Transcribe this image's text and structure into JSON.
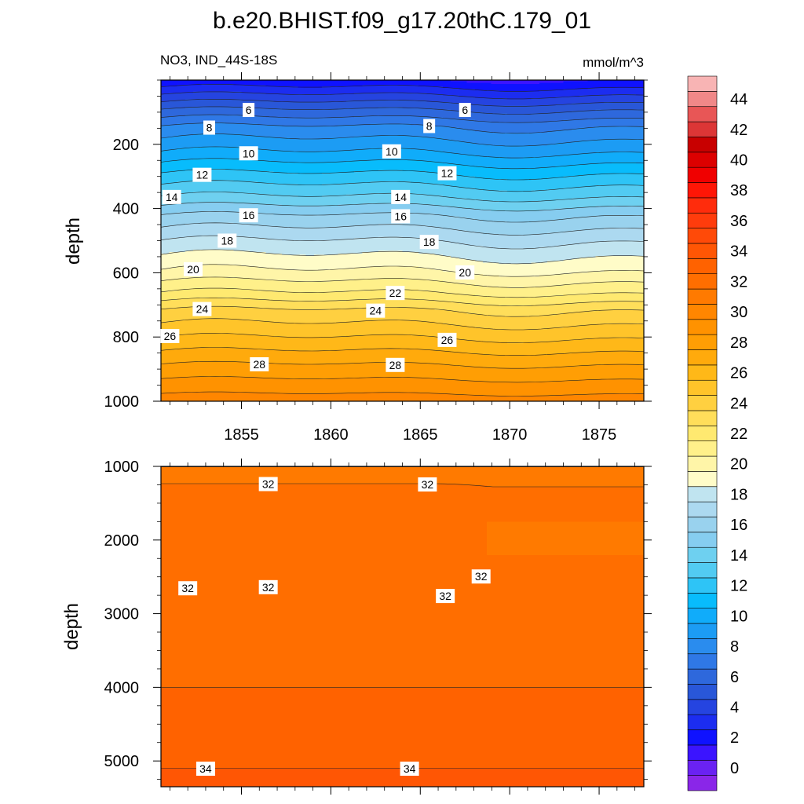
{
  "chart_data": {
    "type": "contour",
    "title": "b.e20.BHIST.f09_g17.20thC.179_01",
    "variable_label": "NO3, IND_44S-18S",
    "units_label": "mmol/m^3",
    "colorbar": {
      "levels": [
        0,
        2,
        4,
        6,
        8,
        10,
        12,
        14,
        16,
        18,
        20,
        22,
        24,
        26,
        28,
        30,
        32,
        34,
        36,
        38,
        40,
        42,
        44
      ],
      "tick_labels": [
        "0",
        "2",
        "4",
        "6",
        "8",
        "10",
        "12",
        "14",
        "16",
        "18",
        "20",
        "22",
        "24",
        "26",
        "28",
        "30",
        "32",
        "34",
        "36",
        "38",
        "40",
        "42",
        "44"
      ],
      "colors": [
        "#8a26e8",
        "#6a22f2",
        "#3b14ff",
        "#0f12ff",
        "#1c2df0",
        "#2544e0",
        "#2957d8",
        "#2e68dc",
        "#2f78e6",
        "#2a8cee",
        "#1c9cf4",
        "#10acfa",
        "#08bcfc",
        "#2ec4f6",
        "#52cbf2",
        "#6ed0f0",
        "#86cdf0",
        "#99d2ee",
        "#acd9f0",
        "#c0e4f0",
        "#fffcc8",
        "#fff5a8",
        "#fff08a",
        "#ffe970",
        "#ffde5a",
        "#ffd040",
        "#ffc42a",
        "#ffb818",
        "#ffaa0c",
        "#ff9e04",
        "#ff9200",
        "#ff8600",
        "#ff7a00",
        "#ff6e00",
        "#ff6200",
        "#ff5604",
        "#ff4a08",
        "#ff3c0c",
        "#ff2c0c",
        "#ff1606",
        "#f00000",
        "#dc0000",
        "#c80000",
        "#dc3636",
        "#e85656",
        "#f08888",
        "#f8b4b4"
      ]
    },
    "top_panel": {
      "ylabel": "depth",
      "ylim": [
        1000,
        0
      ],
      "y_ticks": [
        200,
        400,
        600,
        800,
        1000
      ],
      "x_ticks": [
        1855,
        1860,
        1865,
        1870,
        1875
      ],
      "x_range": [
        1850.5,
        1877.5
      ],
      "contour_labels": [
        {
          "value": "6",
          "x": 1855.4,
          "y": 93
        },
        {
          "value": "6",
          "x": 1867.5,
          "y": 93
        },
        {
          "value": "8",
          "x": 1853.2,
          "y": 148
        },
        {
          "value": "8",
          "x": 1865.5,
          "y": 143
        },
        {
          "value": "10",
          "x": 1855.4,
          "y": 228
        },
        {
          "value": "10",
          "x": 1863.4,
          "y": 222
        },
        {
          "value": "12",
          "x": 1852.8,
          "y": 295
        },
        {
          "value": "12",
          "x": 1866.5,
          "y": 290
        },
        {
          "value": "14",
          "x": 1851.1,
          "y": 364
        },
        {
          "value": "14",
          "x": 1863.9,
          "y": 364
        },
        {
          "value": "16",
          "x": 1855.4,
          "y": 421
        },
        {
          "value": "16",
          "x": 1863.9,
          "y": 424
        },
        {
          "value": "18",
          "x": 1854.2,
          "y": 500
        },
        {
          "value": "18",
          "x": 1865.5,
          "y": 504
        },
        {
          "value": "20",
          "x": 1852.3,
          "y": 589
        },
        {
          "value": "20",
          "x": 1867.5,
          "y": 599
        },
        {
          "value": "22",
          "x": 1863.6,
          "y": 663
        },
        {
          "value": "24",
          "x": 1852.8,
          "y": 713
        },
        {
          "value": "24",
          "x": 1862.5,
          "y": 718
        },
        {
          "value": "26",
          "x": 1851.0,
          "y": 797
        },
        {
          "value": "26",
          "x": 1866.5,
          "y": 809
        },
        {
          "value": "28",
          "x": 1856.0,
          "y": 885
        },
        {
          "value": "28",
          "x": 1863.6,
          "y": 887
        }
      ]
    },
    "bottom_panel": {
      "ylabel": "depth",
      "ylim": [
        5350,
        1000
      ],
      "y_ticks": [
        1000,
        2000,
        3000,
        4000,
        5000
      ],
      "x_range": [
        1850.5,
        1877.5
      ],
      "contour_labels": [
        {
          "value": "32",
          "x": 1856.5,
          "y": 1240
        },
        {
          "value": "32",
          "x": 1865.4,
          "y": 1245
        },
        {
          "value": "32",
          "x": 1852.0,
          "y": 2655
        },
        {
          "value": "32",
          "x": 1856.5,
          "y": 2640
        },
        {
          "value": "32",
          "x": 1866.4,
          "y": 2760
        },
        {
          "value": "32",
          "x": 1868.4,
          "y": 2495
        },
        {
          "value": "34",
          "x": 1853.0,
          "y": 5105
        },
        {
          "value": "34",
          "x": 1864.4,
          "y": 5105
        }
      ]
    }
  }
}
